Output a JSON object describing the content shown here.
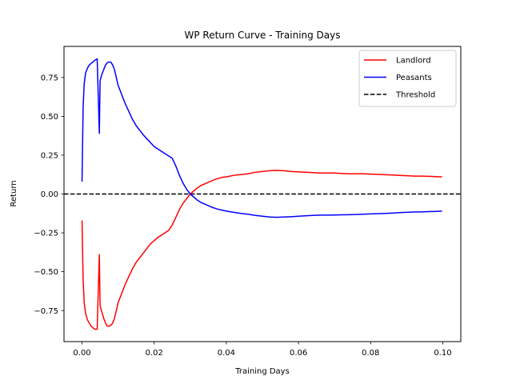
{
  "chart_data": {
    "type": "line",
    "title": "WP Return Curve - Training Days",
    "xlabel": "Training Days",
    "ylabel": "Return",
    "xlim": [
      -0.005,
      0.105
    ],
    "ylim": [
      -0.95,
      0.95
    ],
    "xticks": [
      0.0,
      0.02,
      0.04,
      0.06,
      0.08,
      0.1
    ],
    "xtick_labels": [
      "0.00",
      "0.02",
      "0.04",
      "0.06",
      "0.08",
      "0.10"
    ],
    "yticks": [
      -0.75,
      -0.5,
      -0.25,
      0.0,
      0.25,
      0.5,
      0.75
    ],
    "ytick_labels": [
      "−0.75",
      "−0.50",
      "−0.25",
      "0.00",
      "0.25",
      "0.50",
      "0.75"
    ],
    "grid": false,
    "legend_position": "top-right",
    "series": [
      {
        "name": "Landlord",
        "color": "#ff0000",
        "dash": "solid",
        "x": [
          0.0,
          0.0003,
          0.0006,
          0.001,
          0.0015,
          0.002,
          0.0025,
          0.003,
          0.0035,
          0.0042,
          0.0045,
          0.0048,
          0.005,
          0.0055,
          0.006,
          0.0065,
          0.007,
          0.0075,
          0.008,
          0.0085,
          0.009,
          0.0095,
          0.01,
          0.011,
          0.012,
          0.013,
          0.014,
          0.015,
          0.016,
          0.017,
          0.018,
          0.019,
          0.02,
          0.021,
          0.022,
          0.023,
          0.024,
          0.025,
          0.026,
          0.027,
          0.028,
          0.029,
          0.03,
          0.031,
          0.032,
          0.033,
          0.034,
          0.035,
          0.036,
          0.037,
          0.038,
          0.039,
          0.04,
          0.042,
          0.044,
          0.046,
          0.048,
          0.05,
          0.052,
          0.054,
          0.056,
          0.058,
          0.06,
          0.062,
          0.064,
          0.066,
          0.068,
          0.07,
          0.072,
          0.074,
          0.076,
          0.078,
          0.08,
          0.082,
          0.084,
          0.086,
          0.088,
          0.09,
          0.092,
          0.094,
          0.096,
          0.098,
          0.0998
        ],
        "y": [
          -0.17,
          -0.55,
          -0.7,
          -0.77,
          -0.81,
          -0.83,
          -0.85,
          -0.86,
          -0.87,
          -0.87,
          -0.62,
          -0.39,
          -0.72,
          -0.76,
          -0.8,
          -0.83,
          -0.85,
          -0.85,
          -0.845,
          -0.83,
          -0.8,
          -0.75,
          -0.7,
          -0.64,
          -0.58,
          -0.53,
          -0.48,
          -0.44,
          -0.41,
          -0.38,
          -0.35,
          -0.32,
          -0.3,
          -0.28,
          -0.265,
          -0.25,
          -0.235,
          -0.2,
          -0.15,
          -0.1,
          -0.06,
          -0.03,
          0.0,
          0.02,
          0.04,
          0.055,
          0.065,
          0.075,
          0.085,
          0.095,
          0.102,
          0.108,
          0.11,
          0.12,
          0.125,
          0.13,
          0.14,
          0.145,
          0.15,
          0.152,
          0.15,
          0.145,
          0.142,
          0.14,
          0.138,
          0.135,
          0.135,
          0.135,
          0.132,
          0.13,
          0.13,
          0.13,
          0.128,
          0.126,
          0.124,
          0.122,
          0.12,
          0.118,
          0.115,
          0.115,
          0.114,
          0.112,
          0.11
        ]
      },
      {
        "name": "Peasants",
        "color": "#0000ff",
        "dash": "solid",
        "x": [
          0.0,
          0.0003,
          0.0006,
          0.001,
          0.0015,
          0.002,
          0.0025,
          0.003,
          0.0035,
          0.0042,
          0.0045,
          0.0048,
          0.005,
          0.0055,
          0.006,
          0.0065,
          0.007,
          0.0075,
          0.008,
          0.0085,
          0.009,
          0.0095,
          0.01,
          0.011,
          0.012,
          0.013,
          0.014,
          0.015,
          0.016,
          0.017,
          0.018,
          0.019,
          0.02,
          0.021,
          0.022,
          0.023,
          0.024,
          0.025,
          0.026,
          0.027,
          0.028,
          0.029,
          0.03,
          0.031,
          0.032,
          0.033,
          0.034,
          0.035,
          0.036,
          0.037,
          0.038,
          0.039,
          0.04,
          0.042,
          0.044,
          0.046,
          0.048,
          0.05,
          0.052,
          0.054,
          0.056,
          0.058,
          0.06,
          0.062,
          0.064,
          0.066,
          0.068,
          0.07,
          0.072,
          0.074,
          0.076,
          0.078,
          0.08,
          0.082,
          0.084,
          0.086,
          0.088,
          0.09,
          0.092,
          0.094,
          0.096,
          0.098,
          0.0998
        ],
        "y": [
          0.08,
          0.56,
          0.71,
          0.78,
          0.81,
          0.83,
          0.84,
          0.85,
          0.86,
          0.87,
          0.63,
          0.39,
          0.73,
          0.77,
          0.8,
          0.83,
          0.845,
          0.85,
          0.848,
          0.83,
          0.8,
          0.75,
          0.7,
          0.64,
          0.58,
          0.53,
          0.48,
          0.44,
          0.41,
          0.38,
          0.355,
          0.33,
          0.305,
          0.29,
          0.275,
          0.26,
          0.245,
          0.23,
          0.18,
          0.12,
          0.07,
          0.03,
          0.0,
          -0.02,
          -0.04,
          -0.055,
          -0.065,
          -0.075,
          -0.085,
          -0.093,
          -0.1,
          -0.105,
          -0.11,
          -0.118,
          -0.125,
          -0.13,
          -0.138,
          -0.143,
          -0.148,
          -0.15,
          -0.148,
          -0.146,
          -0.143,
          -0.14,
          -0.138,
          -0.136,
          -0.136,
          -0.135,
          -0.134,
          -0.133,
          -0.132,
          -0.13,
          -0.128,
          -0.127,
          -0.125,
          -0.123,
          -0.12,
          -0.118,
          -0.116,
          -0.115,
          -0.113,
          -0.112,
          -0.11
        ]
      },
      {
        "name": "Threshold",
        "color": "#000000",
        "dash": "dashed",
        "x": [
          -0.005,
          0.105
        ],
        "y": [
          0.0,
          0.0
        ]
      }
    ]
  }
}
